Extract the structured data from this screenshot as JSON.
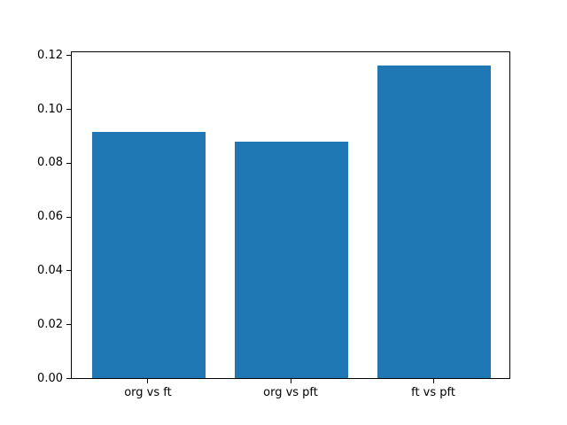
{
  "chart_data": {
    "type": "bar",
    "categories": [
      "org vs ft",
      "org vs pft",
      "ft vs pft"
    ],
    "values": [
      0.0913,
      0.0877,
      0.1161
    ],
    "title": "",
    "xlabel": "",
    "ylabel": "",
    "ylim": [
      0,
      0.1218
    ],
    "yticks": [
      0,
      0.02,
      0.04,
      0.06,
      0.08,
      0.1,
      0.12
    ],
    "ytick_labels": [
      "0.00",
      "0.02",
      "0.04",
      "0.06",
      "0.08",
      "0.10",
      "0.12"
    ],
    "bar_color": "#1f77b4",
    "axes_color": "#000000",
    "background_color": "#ffffff",
    "bar_width_fraction": 0.8,
    "x_axis_margin": 0.54,
    "grid": false,
    "legend": false
  }
}
